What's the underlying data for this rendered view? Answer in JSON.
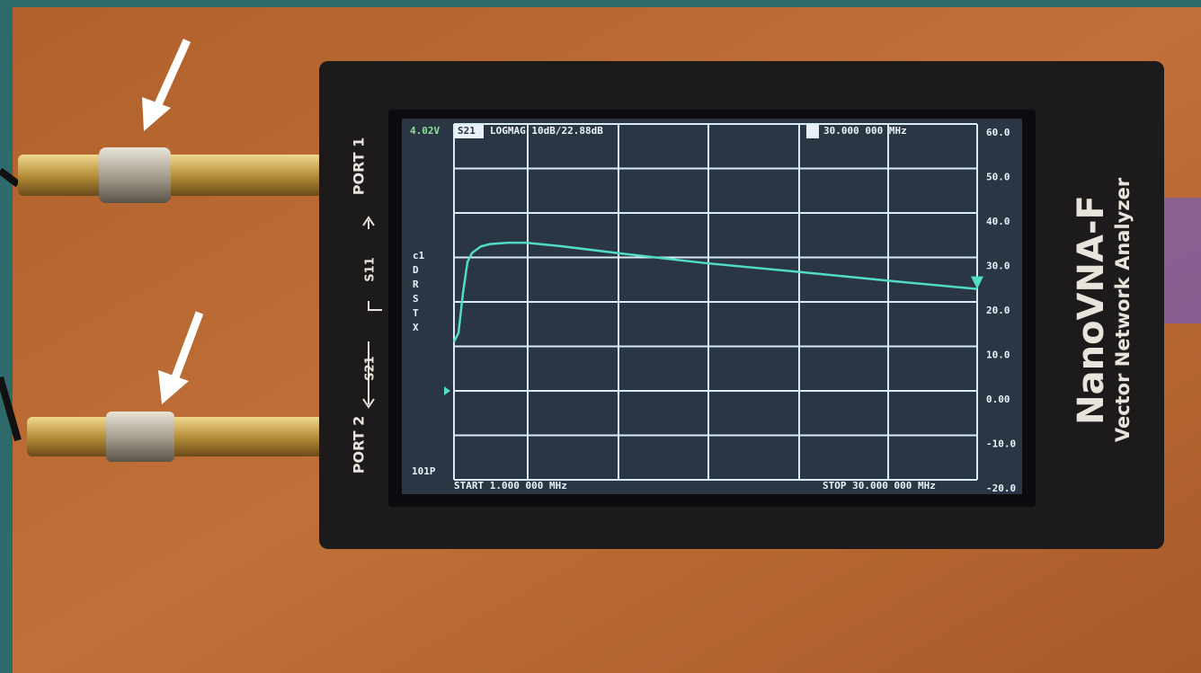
{
  "chart_data": {
    "type": "line",
    "x": [
      1,
      1.25,
      1.5,
      1.75,
      2,
      2.5,
      3,
      4,
      5,
      7,
      10,
      15,
      20,
      25,
      30
    ],
    "series": [
      {
        "name": "S21",
        "color": "#52dcc8",
        "values": [
          11,
          13,
          22,
          29,
          31,
          32.5,
          33,
          33.3,
          33.3,
          32.5,
          31,
          28.7,
          26.8,
          24.8,
          22.9
        ]
      }
    ],
    "xlim": [
      1,
      30
    ],
    "ylim": [
      -20,
      60
    ],
    "yticks": [
      {
        "value": 60,
        "label": "60.0"
      },
      {
        "value": 50,
        "label": "50.0"
      },
      {
        "value": 40,
        "label": "40.0"
      },
      {
        "value": 30,
        "label": "30.0"
      },
      {
        "value": 20,
        "label": "20.0"
      },
      {
        "value": 10,
        "label": "10.0"
      },
      {
        "value": 0,
        "label": "0.00"
      },
      {
        "value": -10,
        "label": "-10.0"
      },
      {
        "value": -20,
        "label": "-20.0"
      }
    ],
    "grid": true
  },
  "screen": {
    "battery": "4.02V",
    "format": "LOGMAG 10dB/22.88dB",
    "marker_freq": "30.000 000 MHz",
    "status": [
      "c1",
      "D",
      "R",
      "S",
      "T",
      "X"
    ],
    "points": "101P",
    "start": "START 1.000 000 MHz",
    "stop": "STOP 30.000 000 MHz"
  },
  "device": {
    "port1": "PORT 1",
    "port2": "PORT 2",
    "s11": "S11",
    "s21": "S21",
    "model": "NanoVNA-F",
    "subtitle": "Vector Network Analyzer"
  }
}
